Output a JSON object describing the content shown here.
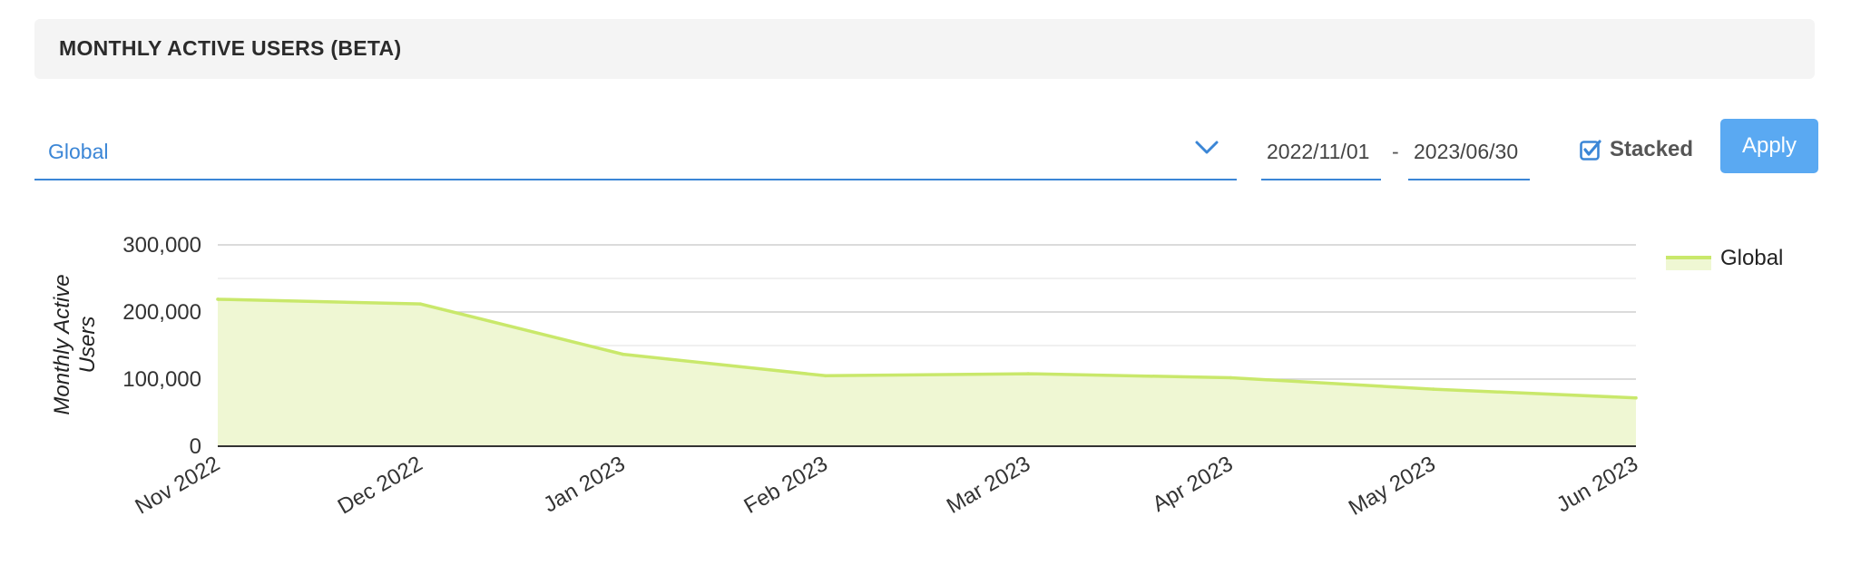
{
  "header": {
    "title": "MONTHLY ACTIVE USERS (BETA)"
  },
  "filters": {
    "region": "Global",
    "date_start": "2022/11/01",
    "date_sep": "-",
    "date_end": "2023/06/30",
    "stacked_label": "Stacked",
    "stacked_checked": true,
    "apply_label": "Apply"
  },
  "colors": {
    "accent": "#3b86d6",
    "apply_button": "#5aa9f2",
    "series_line": "#c9e86b",
    "series_fill": "#eff7d3"
  },
  "chart_data": {
    "type": "area",
    "ylabel": "Monthly Active Users",
    "xlabel": "",
    "categories": [
      "Nov 2022",
      "Dec 2022",
      "Jan 2023",
      "Feb 2023",
      "Mar 2023",
      "Apr 2023",
      "May 2023",
      "Jun 2023"
    ],
    "series": [
      {
        "name": "Global",
        "values": [
          219000,
          212000,
          137000,
          105000,
          108000,
          102000,
          85000,
          72000
        ]
      }
    ],
    "y_ticks": [
      0,
      100000,
      200000,
      300000
    ],
    "y_tick_labels": [
      "0",
      "100,000",
      "200,000",
      "300,000"
    ],
    "ylim": [
      0,
      300000
    ],
    "grid": true,
    "legend_position": "right",
    "stacked": true
  }
}
